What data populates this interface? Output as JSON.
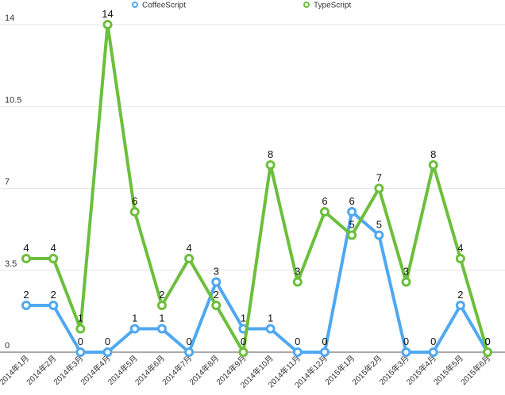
{
  "chart_data": {
    "type": "line",
    "title": "",
    "xlabel": "",
    "ylabel": "",
    "categories": [
      "2014年1月",
      "2014年2月",
      "2014年3月",
      "2014年4月",
      "2014年5月",
      "2014年6月",
      "2014年7月",
      "2014年8月",
      "2014年9月",
      "2014年10月",
      "2014年11月",
      "2014年12月",
      "2015年1月",
      "2015年2月",
      "2015年3月",
      "2015年4月",
      "2015年5月",
      "2015年6月"
    ],
    "yticks": [
      "0",
      "3.5",
      "7",
      "10.5",
      "14"
    ],
    "ylim": [
      0,
      14
    ],
    "grid": true,
    "legend": "top",
    "series": [
      {
        "name": "CoffeeScript",
        "color": "#4fa8f0",
        "values": [
          2,
          2,
          0,
          0,
          1,
          1,
          0,
          3,
          1,
          1,
          0,
          0,
          6,
          5,
          0,
          0,
          2,
          0
        ]
      },
      {
        "name": "TypeScript",
        "color": "#6cbf3c",
        "values": [
          4,
          4,
          1,
          14,
          6,
          2,
          4,
          2,
          0,
          8,
          3,
          6,
          5,
          7,
          3,
          8,
          4,
          0
        ]
      }
    ]
  }
}
